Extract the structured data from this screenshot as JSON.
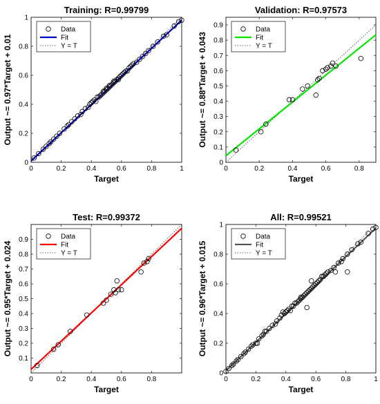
{
  "chart_data": [
    {
      "type": "scatter",
      "title": "Training: R=0.99799",
      "xlabel": "Target",
      "ylabel": "Output ~= 0.97*Target + 0.01",
      "xlim": [
        0,
        1
      ],
      "ylim": [
        0,
        1
      ],
      "xticks": [
        "0",
        "0.2",
        "0.4",
        "0.6",
        "0.8",
        "1"
      ],
      "yticks": [
        "0",
        "0.2",
        "0.4",
        "0.6",
        "0.8",
        "1"
      ],
      "fit": {
        "slope": 0.97,
        "intercept": 0.01,
        "color": "#0000c8",
        "name": "Fit"
      },
      "legend": [
        "Data",
        "Fit",
        "Y = T"
      ],
      "legend_position": "top-left",
      "points": [
        [
          0.02,
          0.03
        ],
        [
          0.05,
          0.06
        ],
        [
          0.08,
          0.09
        ],
        [
          0.1,
          0.11
        ],
        [
          0.12,
          0.13
        ],
        [
          0.13,
          0.14
        ],
        [
          0.15,
          0.16
        ],
        [
          0.17,
          0.18
        ],
        [
          0.19,
          0.2
        ],
        [
          0.22,
          0.23
        ],
        [
          0.24,
          0.25
        ],
        [
          0.25,
          0.26
        ],
        [
          0.27,
          0.28
        ],
        [
          0.29,
          0.3
        ],
        [
          0.31,
          0.32
        ],
        [
          0.33,
          0.33
        ],
        [
          0.34,
          0.35
        ],
        [
          0.36,
          0.37
        ],
        [
          0.38,
          0.38
        ],
        [
          0.39,
          0.4
        ],
        [
          0.4,
          0.41
        ],
        [
          0.41,
          0.42
        ],
        [
          0.42,
          0.43
        ],
        [
          0.43,
          0.42
        ],
        [
          0.44,
          0.45
        ],
        [
          0.45,
          0.45
        ],
        [
          0.46,
          0.46
        ],
        [
          0.47,
          0.47
        ],
        [
          0.48,
          0.48
        ],
        [
          0.48,
          0.49
        ],
        [
          0.49,
          0.49
        ],
        [
          0.5,
          0.5
        ],
        [
          0.5,
          0.51
        ],
        [
          0.51,
          0.51
        ],
        [
          0.52,
          0.52
        ],
        [
          0.52,
          0.53
        ],
        [
          0.53,
          0.53
        ],
        [
          0.54,
          0.54
        ],
        [
          0.55,
          0.55
        ],
        [
          0.55,
          0.56
        ],
        [
          0.56,
          0.56
        ],
        [
          0.57,
          0.57
        ],
        [
          0.58,
          0.58
        ],
        [
          0.58,
          0.57
        ],
        [
          0.59,
          0.59
        ],
        [
          0.6,
          0.6
        ],
        [
          0.61,
          0.61
        ],
        [
          0.62,
          0.62
        ],
        [
          0.63,
          0.63
        ],
        [
          0.64,
          0.63
        ],
        [
          0.65,
          0.65
        ],
        [
          0.66,
          0.66
        ],
        [
          0.67,
          0.67
        ],
        [
          0.68,
          0.68
        ],
        [
          0.7,
          0.69
        ],
        [
          0.72,
          0.71
        ],
        [
          0.74,
          0.73
        ],
        [
          0.76,
          0.75
        ],
        [
          0.78,
          0.77
        ],
        [
          0.81,
          0.8
        ],
        [
          0.84,
          0.83
        ],
        [
          0.88,
          0.87
        ],
        [
          0.9,
          0.88
        ],
        [
          0.95,
          0.94
        ],
        [
          0.98,
          0.97
        ],
        [
          1.0,
          0.98
        ]
      ]
    },
    {
      "type": "scatter",
      "title": "Validation: R=0.97573",
      "xlabel": "Target",
      "ylabel": "Output ~= 0.88*Target + 0.043",
      "xlim": [
        0,
        0.9
      ],
      "ylim": [
        0,
        0.95
      ],
      "xticks": [
        "0",
        "0.2",
        "0.4",
        "0.6",
        "0.8"
      ],
      "yticks": [
        "0",
        "0.1",
        "0.2",
        "0.3",
        "0.4",
        "0.5",
        "0.6",
        "0.7",
        "0.8",
        "0.9"
      ],
      "fit": {
        "slope": 0.88,
        "intercept": 0.043,
        "color": "#00e600",
        "name": "Fit"
      },
      "legend": [
        "Data",
        "Fit",
        "Y = T"
      ],
      "legend_position": "top-left",
      "points": [
        [
          0.06,
          0.08
        ],
        [
          0.21,
          0.2
        ],
        [
          0.24,
          0.25
        ],
        [
          0.38,
          0.41
        ],
        [
          0.4,
          0.41
        ],
        [
          0.46,
          0.48
        ],
        [
          0.49,
          0.5
        ],
        [
          0.54,
          0.44
        ],
        [
          0.55,
          0.54
        ],
        [
          0.56,
          0.55
        ],
        [
          0.58,
          0.6
        ],
        [
          0.6,
          0.61
        ],
        [
          0.61,
          0.62
        ],
        [
          0.63,
          0.63
        ],
        [
          0.64,
          0.65
        ],
        [
          0.66,
          0.63
        ],
        [
          0.81,
          0.68
        ]
      ]
    },
    {
      "type": "scatter",
      "title": "Test: R=0.99372",
      "xlabel": "Target",
      "ylabel": "Output ~= 0.95*Target + 0.024",
      "xlim": [
        0,
        1
      ],
      "ylim": [
        0,
        1
      ],
      "xticks": [
        "0",
        "0.2",
        "0.4",
        "0.6",
        "0.8"
      ],
      "yticks": [
        "0.1",
        "0.2",
        "0.3",
        "0.4",
        "0.5",
        "0.6",
        "0.7",
        "0.8",
        "0.9"
      ],
      "fit": {
        "slope": 0.95,
        "intercept": 0.024,
        "color": "#ff0000",
        "name": "Fit"
      },
      "legend": [
        "Data",
        "Fit",
        "Y = T"
      ],
      "legend_position": "top-left",
      "points": [
        [
          0.04,
          0.05
        ],
        [
          0.15,
          0.16
        ],
        [
          0.18,
          0.19
        ],
        [
          0.26,
          0.28
        ],
        [
          0.37,
          0.39
        ],
        [
          0.48,
          0.47
        ],
        [
          0.5,
          0.49
        ],
        [
          0.53,
          0.53
        ],
        [
          0.55,
          0.56
        ],
        [
          0.56,
          0.54
        ],
        [
          0.57,
          0.62
        ],
        [
          0.58,
          0.56
        ],
        [
          0.6,
          0.56
        ],
        [
          0.73,
          0.68
        ],
        [
          0.75,
          0.74
        ],
        [
          0.77,
          0.75
        ],
        [
          0.78,
          0.77
        ]
      ]
    },
    {
      "type": "scatter",
      "title": "All: R=0.99521",
      "xlabel": "Target",
      "ylabel": "Output ~= 0.96*Target + 0.015",
      "xlim": [
        0,
        1
      ],
      "ylim": [
        0,
        1
      ],
      "xticks": [
        "0",
        "0.2",
        "0.4",
        "0.6",
        "0.8",
        "1"
      ],
      "yticks": [
        "0",
        "0.2",
        "0.4",
        "0.6",
        "0.8",
        "1"
      ],
      "fit": {
        "slope": 0.96,
        "intercept": 0.015,
        "color": "#555555",
        "name": "Fit"
      },
      "legend": [
        "Data",
        "Fit",
        "Y = T"
      ],
      "legend_position": "top-left",
      "points": [
        [
          0.0,
          0.01
        ],
        [
          0.02,
          0.03
        ],
        [
          0.04,
          0.05
        ],
        [
          0.05,
          0.06
        ],
        [
          0.07,
          0.08
        ],
        [
          0.08,
          0.09
        ],
        [
          0.1,
          0.11
        ],
        [
          0.12,
          0.13
        ],
        [
          0.13,
          0.14
        ],
        [
          0.15,
          0.16
        ],
        [
          0.17,
          0.18
        ],
        [
          0.18,
          0.19
        ],
        [
          0.2,
          0.2
        ],
        [
          0.21,
          0.2
        ],
        [
          0.22,
          0.23
        ],
        [
          0.24,
          0.25
        ],
        [
          0.25,
          0.26
        ],
        [
          0.26,
          0.28
        ],
        [
          0.27,
          0.28
        ],
        [
          0.29,
          0.3
        ],
        [
          0.31,
          0.32
        ],
        [
          0.33,
          0.33
        ],
        [
          0.34,
          0.35
        ],
        [
          0.36,
          0.37
        ],
        [
          0.37,
          0.39
        ],
        [
          0.38,
          0.41
        ],
        [
          0.39,
          0.4
        ],
        [
          0.4,
          0.41
        ],
        [
          0.41,
          0.42
        ],
        [
          0.42,
          0.43
        ],
        [
          0.43,
          0.42
        ],
        [
          0.44,
          0.45
        ],
        [
          0.45,
          0.45
        ],
        [
          0.46,
          0.47
        ],
        [
          0.47,
          0.47
        ],
        [
          0.48,
          0.48
        ],
        [
          0.49,
          0.49
        ],
        [
          0.5,
          0.5
        ],
        [
          0.5,
          0.51
        ],
        [
          0.51,
          0.51
        ],
        [
          0.52,
          0.52
        ],
        [
          0.53,
          0.53
        ],
        [
          0.54,
          0.44
        ],
        [
          0.54,
          0.54
        ],
        [
          0.55,
          0.55
        ],
        [
          0.56,
          0.56
        ],
        [
          0.57,
          0.62
        ],
        [
          0.57,
          0.57
        ],
        [
          0.58,
          0.58
        ],
        [
          0.59,
          0.59
        ],
        [
          0.6,
          0.6
        ],
        [
          0.61,
          0.61
        ],
        [
          0.62,
          0.62
        ],
        [
          0.63,
          0.63
        ],
        [
          0.64,
          0.65
        ],
        [
          0.65,
          0.65
        ],
        [
          0.66,
          0.66
        ],
        [
          0.67,
          0.67
        ],
        [
          0.68,
          0.68
        ],
        [
          0.7,
          0.69
        ],
        [
          0.72,
          0.71
        ],
        [
          0.73,
          0.68
        ],
        [
          0.75,
          0.74
        ],
        [
          0.77,
          0.75
        ],
        [
          0.78,
          0.77
        ],
        [
          0.81,
          0.68
        ],
        [
          0.81,
          0.8
        ],
        [
          0.84,
          0.83
        ],
        [
          0.88,
          0.87
        ],
        [
          0.9,
          0.88
        ],
        [
          0.95,
          0.94
        ],
        [
          0.98,
          0.97
        ],
        [
          1.0,
          0.98
        ]
      ]
    }
  ]
}
